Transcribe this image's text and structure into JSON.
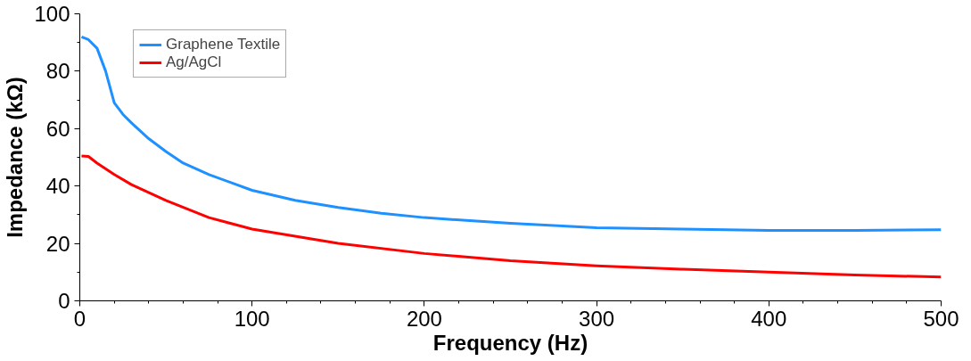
{
  "chart_data": {
    "type": "line",
    "xlabel": "Frequency (Hz)",
    "ylabel": "Impedance (kΩ)",
    "xlim": [
      0,
      500
    ],
    "ylim": [
      0,
      100
    ],
    "xticks": [
      0,
      100,
      200,
      300,
      400,
      500
    ],
    "yticks": [
      0,
      20,
      40,
      60,
      80,
      100
    ],
    "grid": false,
    "legend": "top left",
    "line_style": "solid",
    "marker": "none",
    "series": [
      {
        "name": "Graphene Textile",
        "color": "#1e90ff",
        "x": [
          1,
          5,
          10,
          15,
          20,
          25,
          30,
          40,
          50,
          60,
          75,
          100,
          125,
          150,
          175,
          200,
          250,
          300,
          350,
          400,
          450,
          500
        ],
        "values": [
          92,
          91,
          88,
          80,
          69,
          65,
          62,
          56.5,
          52,
          48,
          44,
          38.5,
          35,
          32.5,
          30.5,
          29,
          27,
          25.5,
          25,
          24.5,
          24.5,
          24.8
        ]
      },
      {
        "name": "Ag/AgCl",
        "color": "#ff0000",
        "x": [
          1,
          5,
          10,
          20,
          30,
          50,
          75,
          100,
          150,
          200,
          250,
          300,
          350,
          400,
          450,
          500
        ],
        "values": [
          50.5,
          50.3,
          48,
          44,
          40.5,
          35,
          29,
          25,
          20,
          16.5,
          14,
          12.2,
          11,
          10,
          9,
          8.3
        ]
      }
    ]
  }
}
